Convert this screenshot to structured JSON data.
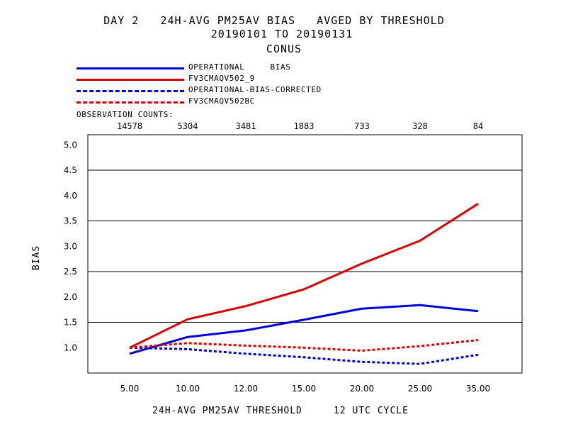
{
  "title": {
    "line1": "DAY 2   24H-AVG PM25AV BIAS   AVGED BY THRESHOLD",
    "line2": "20190101 TO 20190131",
    "line3": "CONUS"
  },
  "legend": {
    "items": [
      {
        "label": "OPERATIONAL     BIAS",
        "color": "#0000dd",
        "style": "solid"
      },
      {
        "label": "FV3CMAQV502_9",
        "color": "#dd0000",
        "style": "solid"
      },
      {
        "label": "OPERATIONAL-BIAS-CORRECTED",
        "color": "#0000dd",
        "style": "dashed"
      },
      {
        "label": "FV3CMAQV502BC",
        "color": "#dd0000",
        "style": "dashed"
      }
    ]
  },
  "observation_counts": {
    "title": "OBSERVATION COUNTS:",
    "values": [
      "14578",
      "5304",
      "3481",
      "1883",
      "733",
      "328",
      "84"
    ]
  },
  "chart_data": {
    "type": "line",
    "categories": [
      "5.00",
      "10.00",
      "12.00",
      "15.00",
      "20.00",
      "25.00",
      "35.00"
    ],
    "xlabel": "24H-AVG PM25AV THRESHOLD",
    "xlabel_note": "12 UTC CYCLE",
    "ylabel": "BIAS",
    "ylim": [
      0.5,
      5.2
    ],
    "yticks": [
      "1.0",
      "1.5",
      "2.0",
      "2.5",
      "3.0",
      "3.5",
      "4.0",
      "4.5",
      "5.0"
    ],
    "gridlines": [
      1.5,
      2.5,
      3.5,
      4.5
    ],
    "series": [
      {
        "name": "OPERATIONAL     BIAS",
        "color": "#0000dd",
        "style": "solid",
        "values": [
          0.88,
          1.21,
          1.34,
          1.55,
          1.77,
          1.84,
          1.72
        ]
      },
      {
        "name": "FV3CMAQV502_9",
        "color": "#dd0000",
        "style": "solid",
        "values": [
          1.0,
          1.56,
          1.82,
          2.15,
          2.66,
          3.11,
          3.84
        ]
      },
      {
        "name": "OPERATIONAL-BIAS-CORRECTED",
        "color": "#0000dd",
        "style": "dashed",
        "values": [
          1.0,
          0.97,
          0.88,
          0.81,
          0.72,
          0.68,
          0.86
        ]
      },
      {
        "name": "FV3CMAQV502BC",
        "color": "#dd0000",
        "style": "dashed",
        "values": [
          1.0,
          1.09,
          1.04,
          1.0,
          0.94,
          1.03,
          1.15
        ]
      }
    ]
  }
}
